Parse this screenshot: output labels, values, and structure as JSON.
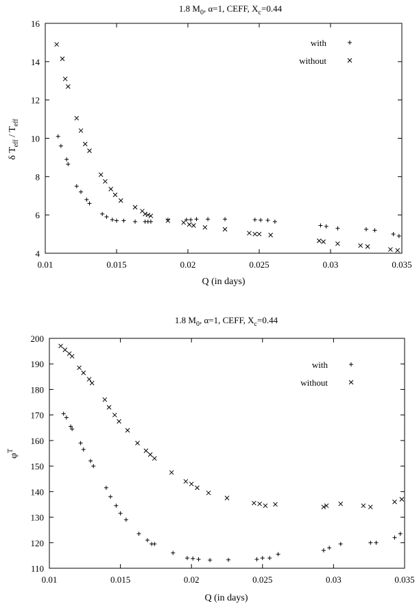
{
  "chart_data": [
    {
      "type": "scatter",
      "title": {
        "base": "1.8 M",
        "sub0": "0",
        "mid": ", α=1, CEFF, X",
        "sub1": "c",
        "tail": "=0.44"
      },
      "xlabel": "Q (in days)",
      "ylabel": {
        "a": "δ T",
        "a_sub": "eff",
        "b": " / T",
        "b_sub": "eff"
      },
      "xlim": [
        0.01,
        0.035
      ],
      "ylim": [
        4,
        16
      ],
      "xticks": [
        0.01,
        0.015,
        0.02,
        0.025,
        0.03,
        0.035
      ],
      "xtick_labels": [
        "0.01",
        "0.015",
        "0.02",
        "0.025",
        "0.03",
        "0.035"
      ],
      "yticks": [
        4,
        6,
        8,
        10,
        12,
        14,
        16
      ],
      "ytick_labels": [
        "4",
        "6",
        "8",
        "10",
        "12",
        "14",
        "16"
      ],
      "grid": false,
      "legend_position": "top-right",
      "series": [
        {
          "name": "with",
          "marker": "plus",
          "x": [
            0.0109,
            0.0111,
            0.0115,
            0.0116,
            0.0122,
            0.0125,
            0.0129,
            0.0131,
            0.014,
            0.0143,
            0.0147,
            0.015,
            0.0155,
            0.0163,
            0.017,
            0.0172,
            0.0174,
            0.0186,
            0.0199,
            0.0202,
            0.0206,
            0.0214,
            0.0226,
            0.0247,
            0.0251,
            0.0256,
            0.0261,
            0.0293,
            0.0297,
            0.0305,
            0.0325,
            0.0331,
            0.0344,
            0.0348
          ],
          "y": [
            10.1,
            9.6,
            8.9,
            8.65,
            7.5,
            7.2,
            6.8,
            6.6,
            6.05,
            5.9,
            5.75,
            5.7,
            5.7,
            5.65,
            5.65,
            5.65,
            5.65,
            5.75,
            5.75,
            5.75,
            5.78,
            5.78,
            5.78,
            5.75,
            5.73,
            5.72,
            5.65,
            5.45,
            5.4,
            5.3,
            5.25,
            5.2,
            5.0,
            4.9
          ]
        },
        {
          "name": "without",
          "marker": "cross",
          "x": [
            0.0108,
            0.0112,
            0.0114,
            0.0116,
            0.0122,
            0.0125,
            0.0128,
            0.0131,
            0.0139,
            0.0142,
            0.0146,
            0.0149,
            0.0153,
            0.0163,
            0.0168,
            0.017,
            0.0172,
            0.0174,
            0.0186,
            0.0197,
            0.0201,
            0.0204,
            0.0212,
            0.0226,
            0.0243,
            0.0247,
            0.025,
            0.0258,
            0.0292,
            0.0295,
            0.0305,
            0.0321,
            0.0326,
            0.0342,
            0.0347
          ],
          "y": [
            14.9,
            14.15,
            13.1,
            12.7,
            11.05,
            10.4,
            9.7,
            9.35,
            8.1,
            7.75,
            7.35,
            7.05,
            6.75,
            6.4,
            6.2,
            6.05,
            6.0,
            5.95,
            5.7,
            5.6,
            5.5,
            5.45,
            5.35,
            5.25,
            5.05,
            5.0,
            5.0,
            4.95,
            4.65,
            4.6,
            4.5,
            4.4,
            4.35,
            4.2,
            4.15
          ]
        }
      ]
    },
    {
      "type": "scatter",
      "title": {
        "base": "1.8 M",
        "sub0": "0",
        "mid": ", α=1, CEFF, X",
        "sub1": "c",
        "tail": "=0.44"
      },
      "xlabel": "Q (in days)",
      "ylabel": {
        "a": "φ",
        "a_sup": "T"
      },
      "xlim": [
        0.01,
        0.035
      ],
      "ylim": [
        110,
        200
      ],
      "xticks": [
        0.01,
        0.015,
        0.02,
        0.025,
        0.03,
        0.035
      ],
      "xtick_labels": [
        "0.01",
        "0.015",
        "0.02",
        "0.025",
        "0.03",
        "0.035"
      ],
      "yticks": [
        110,
        120,
        130,
        140,
        150,
        160,
        170,
        180,
        190,
        200
      ],
      "ytick_labels": [
        "110",
        "120",
        "130",
        "140",
        "150",
        "160",
        "170",
        "180",
        "190",
        "200"
      ],
      "grid": false,
      "legend_position": "top-right",
      "series": [
        {
          "name": "with",
          "marker": "plus",
          "x": [
            0.011,
            0.0112,
            0.0115,
            0.0116,
            0.0122,
            0.0124,
            0.0129,
            0.0131,
            0.014,
            0.0143,
            0.0147,
            0.015,
            0.0154,
            0.0163,
            0.0169,
            0.0172,
            0.0174,
            0.0187,
            0.0197,
            0.0201,
            0.0205,
            0.0213,
            0.0226,
            0.0246,
            0.025,
            0.0255,
            0.0261,
            0.0293,
            0.0297,
            0.0305,
            0.0326,
            0.033,
            0.0343,
            0.0347
          ],
          "y": [
            170.5,
            169,
            165.5,
            164.5,
            159,
            156.5,
            152,
            150,
            141.5,
            138,
            134.5,
            131.5,
            129,
            123.5,
            121,
            119.5,
            119.5,
            116,
            114,
            113.8,
            113.5,
            113.2,
            113.3,
            113.5,
            114,
            114,
            115.5,
            117,
            118,
            119.5,
            120,
            120,
            122,
            123.5
          ]
        },
        {
          "name": "without",
          "marker": "cross",
          "x": [
            0.0108,
            0.0111,
            0.0114,
            0.0116,
            0.0121,
            0.0124,
            0.0128,
            0.013,
            0.0139,
            0.0142,
            0.0146,
            0.0149,
            0.0155,
            0.0162,
            0.0168,
            0.0171,
            0.0174,
            0.0186,
            0.0196,
            0.02,
            0.0204,
            0.0212,
            0.0225,
            0.0244,
            0.0248,
            0.0252,
            0.0259,
            0.0293,
            0.0295,
            0.0305,
            0.0321,
            0.0326,
            0.0343,
            0.0348
          ],
          "y": [
            197,
            195.5,
            194,
            193,
            188.5,
            186.5,
            184,
            182.5,
            176,
            173,
            170,
            167.5,
            164,
            159,
            156,
            154.5,
            153,
            147.5,
            144,
            143,
            141.5,
            139.5,
            137.5,
            135.5,
            135.2,
            134.5,
            135,
            134,
            134.5,
            135.2,
            134.5,
            134,
            136,
            137
          ]
        }
      ]
    }
  ]
}
